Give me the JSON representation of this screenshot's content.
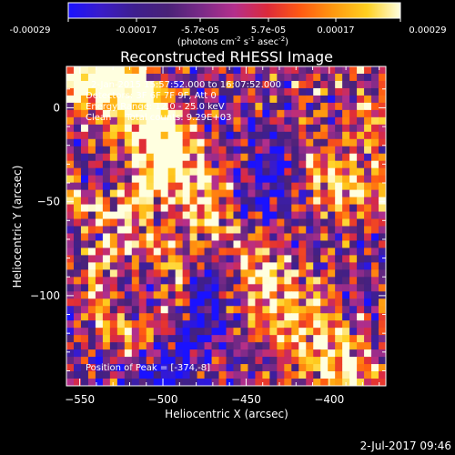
{
  "colorbar": {
    "ticks": [
      "-0.00029",
      "-0.00017",
      "-5.7e-05",
      "5.7e-05",
      "0.00017",
      "0.00029"
    ],
    "label_main": "(photons cm",
    "label_exp1": "-2",
    "label_mid1": " s",
    "label_exp2": "-1",
    "label_mid2": " asec",
    "label_exp3": "-2",
    "label_end": ")",
    "stops": [
      "#1a12ff",
      "#3a1cc8",
      "#3e1f8e",
      "#4a2278",
      "#7a2a88",
      "#b42f8c",
      "#dd2a3a",
      "#ff5a12",
      "#ff9a10",
      "#ffd020",
      "#ffffe0"
    ]
  },
  "chart_data": {
    "type": "heatmap",
    "title": "Reconstructed RHESSI Image",
    "xlabel": "Heliocentric X (arcsec)",
    "ylabel": "Heliocentric Y (arcsec)",
    "xlim": [
      -558,
      -366
    ],
    "ylim": [
      -148,
      22
    ],
    "xticks": [
      -550,
      -500,
      -450,
      -400
    ],
    "yticks": [
      0,
      -50,
      -100
    ],
    "value_range": [
      -0.00029,
      0.00029
    ],
    "peak": [
      -374,
      -8
    ],
    "annotations": [
      "2-Jan-2015 15:57:52.000 to 16:07:52.000",
      "Detectors: 3F 6F 7F 9F, Att 0",
      "Energy Range: 12.0 - 25.0 keV",
      "Clean     Total counts: 9.29E+03"
    ],
    "peak_label": "Position of Peak = [-374,-8]"
  },
  "footer": {
    "timestamp": "2-Jul-2017 09:46"
  }
}
